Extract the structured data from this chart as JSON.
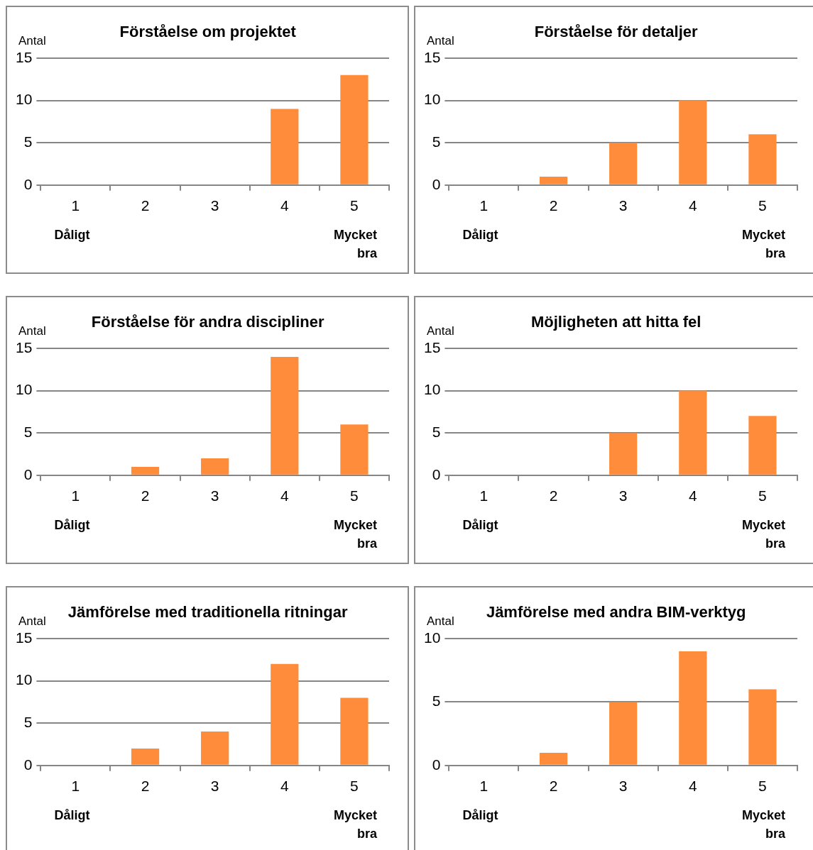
{
  "chart_data": [
    {
      "type": "bar",
      "title": "Förståelse om projektet",
      "ylabel": "Antal",
      "categories": [
        "1",
        "2",
        "3",
        "4",
        "5"
      ],
      "values": [
        0,
        0,
        0,
        9,
        13
      ],
      "color": "#ff8c3a",
      "ylim": [
        0,
        15
      ],
      "yticks": [
        0,
        5,
        10,
        15
      ],
      "grid": "y",
      "legend": false,
      "annotations": [
        "Dåligt",
        "Mycket bra"
      ]
    },
    {
      "type": "bar",
      "title": "Förståelse för detaljer",
      "ylabel": "Antal",
      "categories": [
        "1",
        "2",
        "3",
        "4",
        "5"
      ],
      "values": [
        0,
        1,
        5,
        10,
        6
      ],
      "color": "#ff8c3a",
      "ylim": [
        0,
        15
      ],
      "yticks": [
        0,
        5,
        10,
        15
      ],
      "grid": "y",
      "legend": false,
      "annotations": [
        "Dåligt",
        "Mycket bra"
      ]
    },
    {
      "type": "bar",
      "title": "Förståelse för andra discipliner",
      "ylabel": "Antal",
      "categories": [
        "1",
        "2",
        "3",
        "4",
        "5"
      ],
      "values": [
        0,
        1,
        2,
        14,
        6
      ],
      "color": "#ff8c3a",
      "ylim": [
        0,
        15
      ],
      "yticks": [
        0,
        5,
        10,
        15
      ],
      "grid": "y",
      "legend": false,
      "annotations": [
        "Dåligt",
        "Mycket bra"
      ]
    },
    {
      "type": "bar",
      "title": "Möjligheten att hitta fel",
      "ylabel": "Antal",
      "categories": [
        "1",
        "2",
        "3",
        "4",
        "5"
      ],
      "values": [
        0,
        0,
        5,
        10,
        7
      ],
      "color": "#ff8c3a",
      "ylim": [
        0,
        15
      ],
      "yticks": [
        0,
        5,
        10,
        15
      ],
      "grid": "y",
      "legend": false,
      "annotations": [
        "Dåligt",
        "Mycket bra"
      ]
    },
    {
      "type": "bar",
      "title": "Jämförelse med traditionella ritningar",
      "ylabel": "Antal",
      "categories": [
        "1",
        "2",
        "3",
        "4",
        "5"
      ],
      "values": [
        0,
        2,
        4,
        12,
        8
      ],
      "color": "#ff8c3a",
      "ylim": [
        0,
        15
      ],
      "yticks": [
        0,
        5,
        10,
        15
      ],
      "grid": "y",
      "legend": false,
      "annotations": [
        "Dåligt",
        "Mycket bra"
      ]
    },
    {
      "type": "bar",
      "title": "Jämförelse med andra BIM-verktyg",
      "ylabel": "Antal",
      "categories": [
        "1",
        "2",
        "3",
        "4",
        "5"
      ],
      "values": [
        0,
        1,
        5,
        9,
        6
      ],
      "color": "#ff8c3a",
      "ylim": [
        0,
        10
      ],
      "yticks": [
        0,
        5,
        10
      ],
      "grid": "y",
      "legend": false,
      "annotations": [
        "Dåligt",
        "Mycket bra"
      ]
    }
  ]
}
